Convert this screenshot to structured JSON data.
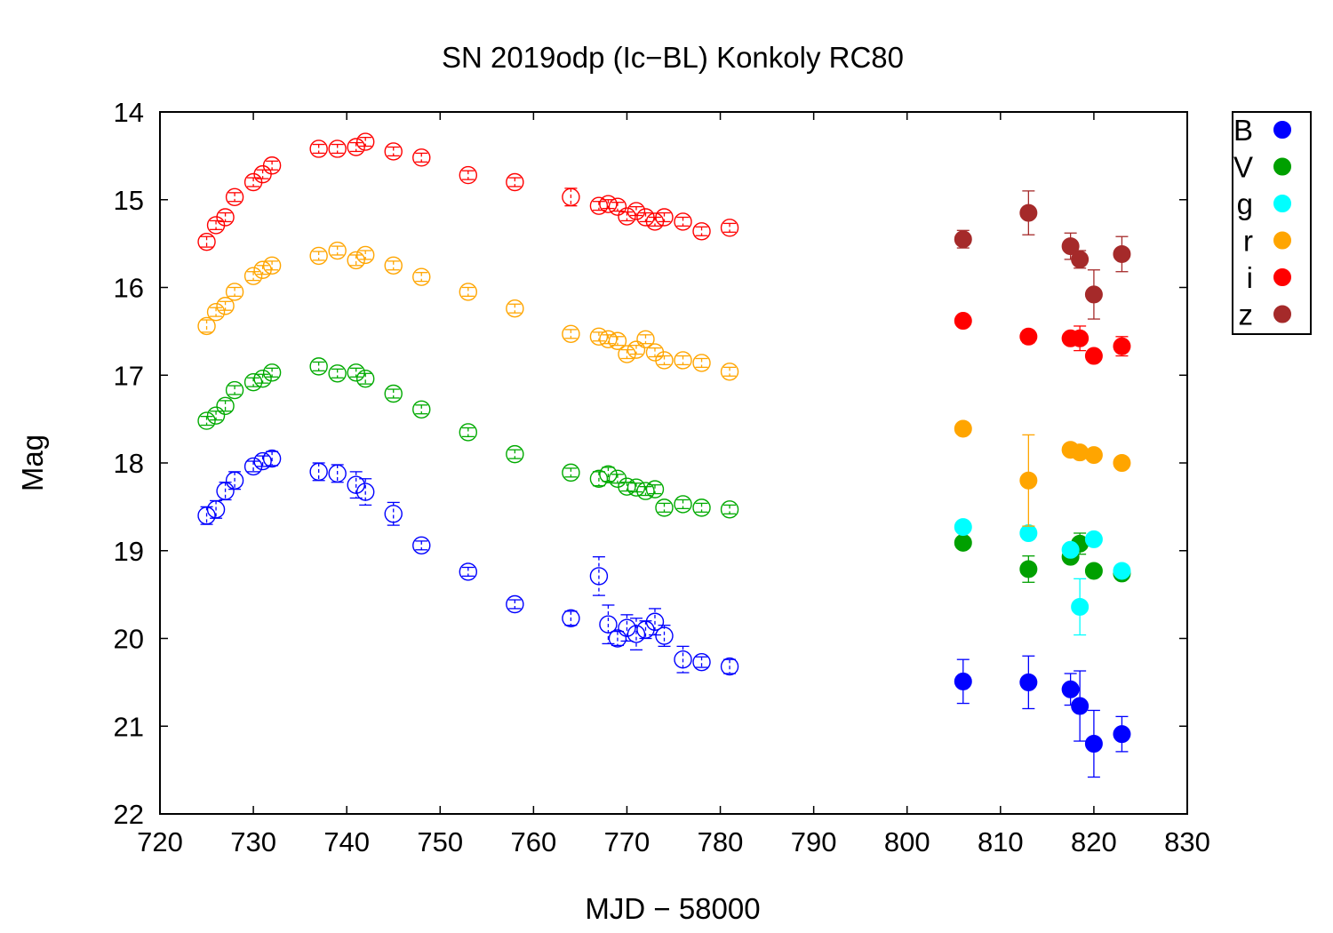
{
  "chart_data": {
    "type": "scatter",
    "title": "SN 2019odp (Ic−BL) Konkoly RC80",
    "xlabel": "MJD − 58000",
    "ylabel": "Mag",
    "xlim": [
      720,
      830
    ],
    "ylim": [
      22,
      14
    ],
    "y_inverted": true,
    "xticks": [
      720,
      730,
      740,
      750,
      760,
      770,
      780,
      790,
      800,
      810,
      820,
      830
    ],
    "yticks": [
      14,
      15,
      16,
      17,
      18,
      19,
      20,
      21,
      22
    ],
    "grid": false,
    "legend_position": "outside-top-right",
    "open_marker_series": [
      {
        "band": "B",
        "color": "#0000ff",
        "points": [
          [
            725,
            18.6,
            0.1
          ],
          [
            726,
            18.53,
            0.1
          ],
          [
            727,
            18.32,
            0.1
          ],
          [
            728,
            18.2,
            0.1
          ],
          [
            730,
            18.04,
            0.06
          ],
          [
            731,
            17.98,
            0.06
          ],
          [
            732,
            17.95,
            0.08
          ],
          [
            737,
            18.1,
            0.1
          ],
          [
            739,
            18.12,
            0.1
          ],
          [
            741,
            18.25,
            0.15
          ],
          [
            742,
            18.33,
            0.15
          ],
          [
            745,
            18.58,
            0.13
          ],
          [
            748,
            18.94,
            0.05
          ],
          [
            753,
            19.24,
            0.05
          ],
          [
            758,
            19.61,
            0.05
          ],
          [
            764,
            19.77,
            0.08
          ],
          [
            767,
            19.29,
            0.22
          ],
          [
            768,
            19.84,
            0.22
          ],
          [
            769,
            20.0,
            0.08
          ],
          [
            770,
            19.88,
            0.15
          ],
          [
            771,
            19.95,
            0.18
          ],
          [
            772,
            19.9,
            0.1
          ],
          [
            773,
            19.81,
            0.15
          ],
          [
            774,
            19.97,
            0.12
          ],
          [
            776,
            20.24,
            0.15
          ],
          [
            778,
            20.27,
            0.06
          ],
          [
            781,
            20.32,
            0.08
          ]
        ]
      },
      {
        "band": "V",
        "color": "#00aa00",
        "points": [
          [
            725,
            17.52,
            0.05
          ],
          [
            726,
            17.46,
            0.05
          ],
          [
            727,
            17.35,
            0.06
          ],
          [
            728,
            17.17,
            0.05
          ],
          [
            730,
            17.08,
            0.05
          ],
          [
            731,
            17.04,
            0.05
          ],
          [
            732,
            16.97,
            0.05
          ],
          [
            737,
            16.9,
            0.05
          ],
          [
            739,
            16.98,
            0.05
          ],
          [
            741,
            16.97,
            0.05
          ],
          [
            742,
            17.04,
            0.06
          ],
          [
            745,
            17.21,
            0.05
          ],
          [
            748,
            17.39,
            0.05
          ],
          [
            753,
            17.65,
            0.05
          ],
          [
            758,
            17.9,
            0.05
          ],
          [
            764,
            18.11,
            0.05
          ],
          [
            767,
            18.18,
            0.08
          ],
          [
            768,
            18.13,
            0.08
          ],
          [
            769,
            18.18,
            0.05
          ],
          [
            770,
            18.27,
            0.05
          ],
          [
            771,
            18.28,
            0.05
          ],
          [
            772,
            18.32,
            0.05
          ],
          [
            773,
            18.3,
            0.05
          ],
          [
            774,
            18.51,
            0.05
          ],
          [
            776,
            18.47,
            0.05
          ],
          [
            778,
            18.51,
            0.05
          ],
          [
            781,
            18.53,
            0.05
          ]
        ]
      },
      {
        "band": "r",
        "color": "#ffa500",
        "points": [
          [
            725,
            16.44,
            0.07
          ],
          [
            726,
            16.28,
            0.05
          ],
          [
            727,
            16.21,
            0.05
          ],
          [
            728,
            16.05,
            0.05
          ],
          [
            730,
            15.87,
            0.05
          ],
          [
            731,
            15.8,
            0.05
          ],
          [
            732,
            15.75,
            0.05
          ],
          [
            737,
            15.64,
            0.05
          ],
          [
            739,
            15.58,
            0.05
          ],
          [
            741,
            15.69,
            0.06
          ],
          [
            742,
            15.63,
            0.05
          ],
          [
            745,
            15.75,
            0.05
          ],
          [
            748,
            15.88,
            0.05
          ],
          [
            753,
            16.05,
            0.05
          ],
          [
            758,
            16.24,
            0.05
          ],
          [
            764,
            16.53,
            0.05
          ],
          [
            767,
            16.56,
            0.05
          ],
          [
            768,
            16.59,
            0.05
          ],
          [
            769,
            16.61,
            0.05
          ],
          [
            770,
            16.76,
            0.05
          ],
          [
            771,
            16.71,
            0.05
          ],
          [
            772,
            16.59,
            0.05
          ],
          [
            773,
            16.74,
            0.05
          ],
          [
            774,
            16.83,
            0.05
          ],
          [
            776,
            16.83,
            0.05
          ],
          [
            778,
            16.86,
            0.05
          ],
          [
            781,
            16.96,
            0.05
          ]
        ]
      },
      {
        "band": "i",
        "color": "#ff0000",
        "points": [
          [
            725,
            15.48,
            0.06
          ],
          [
            726,
            15.29,
            0.05
          ],
          [
            727,
            15.2,
            0.05
          ],
          [
            728,
            14.97,
            0.05
          ],
          [
            730,
            14.8,
            0.05
          ],
          [
            731,
            14.71,
            0.05
          ],
          [
            732,
            14.61,
            0.05
          ],
          [
            737,
            14.42,
            0.05
          ],
          [
            739,
            14.42,
            0.05
          ],
          [
            741,
            14.4,
            0.05
          ],
          [
            742,
            14.34,
            0.05
          ],
          [
            745,
            14.45,
            0.05
          ],
          [
            748,
            14.52,
            0.05
          ],
          [
            753,
            14.72,
            0.05
          ],
          [
            758,
            14.8,
            0.05
          ],
          [
            764,
            14.97,
            0.1
          ],
          [
            767,
            15.07,
            0.05
          ],
          [
            768,
            15.05,
            0.05
          ],
          [
            769,
            15.08,
            0.05
          ],
          [
            770,
            15.19,
            0.05
          ],
          [
            771,
            15.13,
            0.05
          ],
          [
            772,
            15.2,
            0.05
          ],
          [
            773,
            15.25,
            0.05
          ],
          [
            774,
            15.2,
            0.05
          ],
          [
            776,
            15.25,
            0.05
          ],
          [
            778,
            15.36,
            0.05
          ],
          [
            781,
            15.32,
            0.05
          ]
        ]
      }
    ],
    "filled_marker_series": [
      {
        "band": "B",
        "color": "#0000ff",
        "points": [
          [
            806,
            20.49,
            0.25
          ],
          [
            813,
            20.5,
            0.3
          ],
          [
            817.5,
            20.58,
            0.18
          ],
          [
            818.5,
            20.77,
            0.4
          ],
          [
            820,
            21.2,
            0.38
          ],
          [
            823,
            21.09,
            0.2
          ]
        ]
      },
      {
        "band": "V",
        "color": "#00a000",
        "points": [
          [
            806,
            18.91,
            0.05
          ],
          [
            813,
            19.21,
            0.15
          ],
          [
            817.5,
            19.07,
            0.05
          ],
          [
            818.5,
            18.92,
            0.12
          ],
          [
            820,
            19.23,
            0.05
          ],
          [
            823,
            19.26,
            0.05
          ]
        ]
      },
      {
        "band": "g",
        "color": "#00ffff",
        "points": [
          [
            806,
            18.73,
            0.05
          ],
          [
            813,
            18.8,
            0.07
          ],
          [
            817.5,
            18.99,
            0.05
          ],
          [
            818.5,
            19.64,
            0.32
          ],
          [
            820,
            18.87,
            0.05
          ],
          [
            823,
            19.23,
            0.05
          ]
        ]
      },
      {
        "band": "r",
        "color": "#ffa500",
        "points": [
          [
            806,
            17.61,
            0.05
          ],
          [
            813,
            18.2,
            0.52
          ],
          [
            817.5,
            17.85,
            0.05
          ],
          [
            818.5,
            17.88,
            0.05
          ],
          [
            820,
            17.91,
            0.05
          ],
          [
            823,
            18.0,
            0.05
          ]
        ]
      },
      {
        "band": "i",
        "color": "#ff0000",
        "points": [
          [
            806,
            16.38,
            0.05
          ],
          [
            813,
            16.56,
            0.07
          ],
          [
            817.5,
            16.58,
            0.05
          ],
          [
            818.5,
            16.58,
            0.14
          ],
          [
            820,
            16.78,
            0.05
          ],
          [
            823,
            16.67,
            0.11
          ]
        ]
      },
      {
        "band": "z",
        "color": "#a52a2a",
        "points": [
          [
            806,
            15.45,
            0.1
          ],
          [
            813,
            15.15,
            0.25
          ],
          [
            817.5,
            15.53,
            0.15
          ],
          [
            818.5,
            15.68,
            0.1
          ],
          [
            820,
            16.08,
            0.28
          ],
          [
            823,
            15.62,
            0.2
          ]
        ]
      }
    ],
    "legend": [
      {
        "label": "B",
        "color": "#0000ff"
      },
      {
        "label": "V",
        "color": "#00a000"
      },
      {
        "label": "g",
        "color": "#00ffff"
      },
      {
        "label": "r",
        "color": "#ffa500"
      },
      {
        "label": "i",
        "color": "#ff0000"
      },
      {
        "label": "z",
        "color": "#a52a2a"
      }
    ]
  }
}
